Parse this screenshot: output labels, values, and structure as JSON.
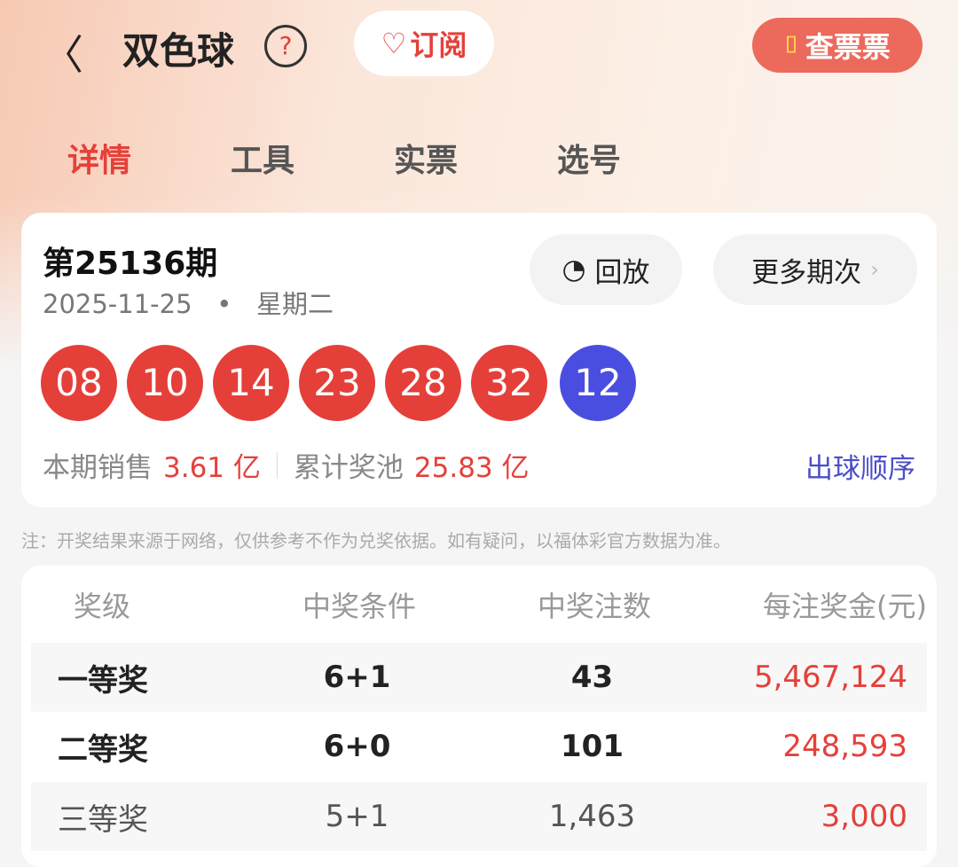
{
  "header": {
    "title": "双色球",
    "subscribe_label": "订阅",
    "check_ticket_label": "查票票"
  },
  "tabs": [
    {
      "label": "详情",
      "active": true
    },
    {
      "label": "工具"
    },
    {
      "label": "实票"
    },
    {
      "label": "选号"
    }
  ],
  "draw": {
    "issue": "第25136期",
    "date": "2025-11-25",
    "dot": "•",
    "weekday": "星期二",
    "replay_label": "回放",
    "more_label": "更多期次",
    "red_balls": [
      "08",
      "10",
      "14",
      "23",
      "28",
      "32"
    ],
    "blue_ball": "12",
    "sales_label": "本期销售",
    "sales_value": "3.61 亿",
    "pool_label": "累计奖池",
    "pool_value": "25.83 亿",
    "order_label": "出球顺序"
  },
  "note": "注：开奖结果来源于网络，仅供参考不作为兑奖依据。如有疑问，以福体彩官方数据为准。",
  "table": {
    "headers": [
      "奖级",
      "中奖条件",
      "中奖注数",
      "每注奖金(元)"
    ],
    "rows": [
      [
        "一等奖",
        "6+1",
        "43",
        "5,467,124"
      ],
      [
        "二等奖",
        "6+0",
        "101",
        "248,593"
      ],
      [
        "三等奖",
        "5+1",
        "1,463",
        "3,000"
      ]
    ]
  },
  "colors": {
    "red": "#e53f3a",
    "blue": "#4a4ee0",
    "accent": "#e5403a"
  }
}
